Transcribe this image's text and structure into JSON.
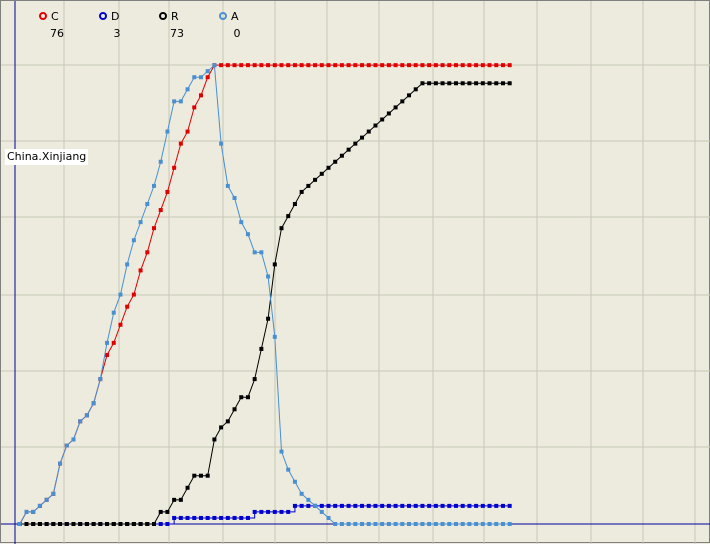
{
  "region_label": "China.Xinjiang",
  "legend": [
    {
      "label": "C",
      "value": "76",
      "color": "#e00000"
    },
    {
      "label": "D",
      "value": "3",
      "color": "#0000d0"
    },
    {
      "label": "R",
      "value": "73",
      "color": "#000000"
    },
    {
      "label": "A",
      "value": "0",
      "color": "#4a8fcf"
    }
  ],
  "chart_data": {
    "type": "line",
    "title": "China.Xinjiang",
    "x": [
      0,
      1,
      2,
      3,
      4,
      5,
      6,
      7,
      8,
      9,
      10,
      11,
      12,
      13,
      14,
      15,
      16,
      17,
      18,
      19,
      20,
      21,
      22,
      23,
      24,
      25,
      26,
      27,
      28,
      29,
      30,
      31,
      32,
      33,
      34,
      35,
      36,
      37,
      38,
      39,
      40,
      41,
      42,
      43,
      44,
      45,
      46,
      47,
      48,
      49,
      50,
      51,
      52,
      53,
      54,
      55,
      56,
      57,
      58,
      59,
      60,
      61,
      62,
      63,
      64,
      65,
      66,
      67,
      68,
      69,
      70,
      71,
      72,
      73
    ],
    "xlim": [
      -2.8,
      103
    ],
    "ylim": [
      0,
      80
    ],
    "grid": true,
    "series": [
      {
        "name": "C",
        "color": "#e00000",
        "values": [
          0,
          2,
          2,
          3,
          4,
          5,
          10,
          13,
          14,
          17,
          18,
          20,
          24,
          28,
          30,
          33,
          36,
          38,
          42,
          45,
          49,
          52,
          55,
          59,
          63,
          65,
          69,
          71,
          74,
          76,
          76,
          76,
          76,
          76,
          76,
          76,
          76,
          76,
          76,
          76,
          76,
          76,
          76,
          76,
          76,
          76,
          76,
          76,
          76,
          76,
          76,
          76,
          76,
          76,
          76,
          76,
          76,
          76,
          76,
          76,
          76,
          76,
          76,
          76,
          76,
          76,
          76,
          76,
          76,
          76,
          76,
          76,
          76,
          76
        ]
      },
      {
        "name": "D",
        "color": "#0000d0",
        "values": [
          0,
          0,
          0,
          0,
          0,
          0,
          0,
          0,
          0,
          0,
          0,
          0,
          0,
          0,
          0,
          0,
          0,
          0,
          0,
          0,
          0,
          0,
          0,
          1,
          1,
          1,
          1,
          1,
          1,
          1,
          1,
          1,
          1,
          1,
          1,
          2,
          2,
          2,
          2,
          2,
          2,
          3,
          3,
          3,
          3,
          3,
          3,
          3,
          3,
          3,
          3,
          3,
          3,
          3,
          3,
          3,
          3,
          3,
          3,
          3,
          3,
          3,
          3,
          3,
          3,
          3,
          3,
          3,
          3,
          3,
          3,
          3,
          3,
          3
        ]
      },
      {
        "name": "R",
        "color": "#000000",
        "values": [
          0,
          0,
          0,
          0,
          0,
          0,
          0,
          0,
          0,
          0,
          0,
          0,
          0,
          0,
          0,
          0,
          0,
          0,
          0,
          0,
          0,
          2,
          2,
          4,
          4,
          6,
          8,
          8,
          8,
          14,
          16,
          17,
          19,
          21,
          21,
          24,
          29,
          34,
          43,
          49,
          51,
          53,
          55,
          56,
          57,
          58,
          59,
          60,
          61,
          62,
          63,
          64,
          65,
          66,
          67,
          68,
          69,
          70,
          71,
          72,
          73,
          73,
          73,
          73,
          73,
          73,
          73,
          73,
          73,
          73,
          73,
          73,
          73,
          73
        ]
      },
      {
        "name": "A",
        "color": "#4a8fcf",
        "values": [
          0,
          2,
          2,
          3,
          4,
          5,
          10,
          13,
          14,
          17,
          18,
          20,
          24,
          30,
          35,
          38,
          43,
          47,
          50,
          53,
          56,
          60,
          65,
          70,
          70,
          72,
          74,
          74,
          75,
          76,
          63,
          56,
          54,
          50,
          48,
          45,
          45,
          41,
          31,
          12,
          9,
          7,
          5,
          4,
          3,
          2,
          1,
          0,
          0,
          0,
          0,
          0,
          0,
          0,
          0,
          0,
          0,
          0,
          0,
          0,
          0,
          0,
          0,
          0,
          0,
          0,
          0,
          0,
          0,
          0,
          0,
          0,
          0,
          0
        ]
      }
    ]
  }
}
